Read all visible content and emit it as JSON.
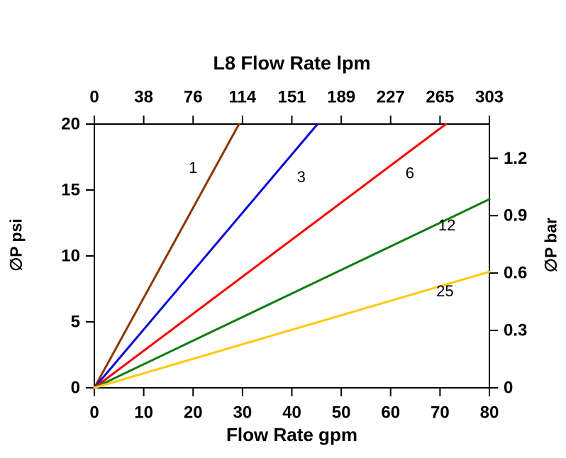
{
  "figure": {
    "background_color": "#ffffff",
    "axis_color": "#000000"
  },
  "chart_data": {
    "type": "line",
    "title_top": "L8 Flow Rate lpm",
    "xlabel_bottom": "Flow Rate gpm",
    "ylabel_left": "∅P psi",
    "ylabel_right": "∅P bar",
    "xlim": [
      0,
      80
    ],
    "ylim": [
      0,
      20
    ],
    "x_gpm_ticks": [
      0,
      10,
      20,
      30,
      40,
      50,
      60,
      70,
      80
    ],
    "x_lpm_ticks": [
      0,
      38,
      76,
      114,
      151,
      189,
      227,
      265,
      303
    ],
    "y_psi_ticks": [
      0,
      5,
      10,
      15,
      20
    ],
    "y_bar_ticks": [
      0,
      0.3,
      0.6,
      0.9,
      1.2
    ],
    "psi_per_bar": 14.5038,
    "grid": false,
    "legend_position": "inline-labels",
    "series": [
      {
        "name": "1",
        "color": "#8C3503",
        "points": [
          [
            0,
            0
          ],
          [
            29.3,
            20
          ]
        ],
        "label_at": [
          20,
          16.7
        ]
      },
      {
        "name": "3",
        "color": "#0A0ADC",
        "points": [
          [
            0,
            0
          ],
          [
            45.2,
            20
          ]
        ],
        "label_at": [
          41.9,
          16.0
        ]
      },
      {
        "name": "6",
        "color": "#FF0000",
        "points": [
          [
            0,
            0
          ],
          [
            71.2,
            20
          ]
        ],
        "label_at": [
          63.9,
          16.3
        ]
      },
      {
        "name": "12",
        "color": "#0E7D12",
        "points": [
          [
            0,
            0
          ],
          [
            80,
            14.3
          ]
        ],
        "label_at": [
          71.4,
          12.35
        ]
      },
      {
        "name": "25",
        "color": "#FFC90A",
        "points": [
          [
            0,
            0
          ],
          [
            80,
            8.8
          ]
        ],
        "label_at": [
          71.0,
          7.35
        ]
      }
    ]
  }
}
